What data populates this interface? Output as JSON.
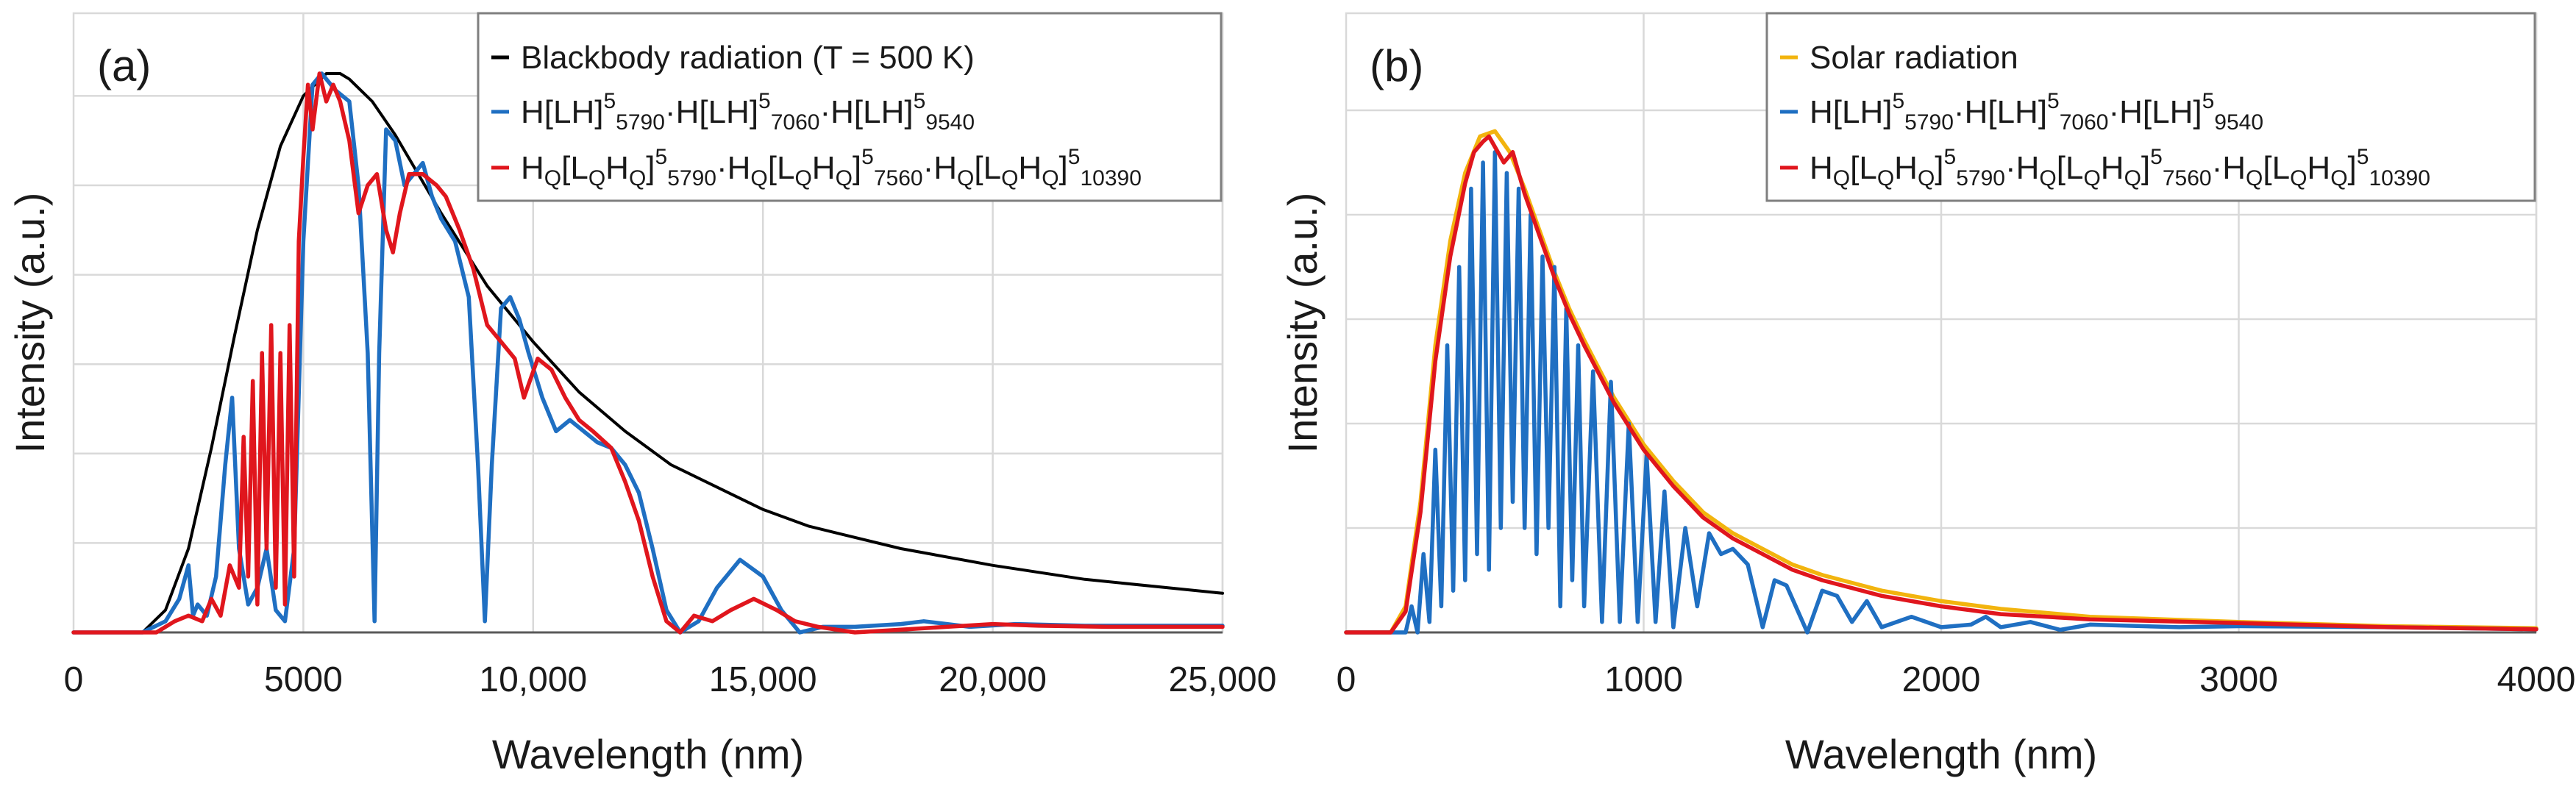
{
  "chart_data": [
    {
      "type": "line",
      "panel_label": "(a)",
      "xlabel": "Wavelength (nm)",
      "ylabel": "Intensity (a.u.)",
      "xlim": [
        0,
        25000
      ],
      "ylim": [
        0,
        1.0
      ],
      "x_ticks": [
        0,
        5000,
        10000,
        15000,
        20000,
        25000
      ],
      "x_tick_labels": [
        "0",
        "5000",
        "10,000",
        "15,000",
        "20,000",
        "25,000"
      ],
      "y_gridlines": [
        0.16,
        0.32,
        0.48,
        0.64,
        0.8,
        0.96
      ],
      "legend_position": "top-right",
      "series": [
        {
          "name": "Blackbody radiation (T = 500 K)",
          "color": "#000000",
          "legend": [
            {
              "t": "Blackbody radiation (T = 500 K)"
            }
          ],
          "x": [
            1500,
            2000,
            2500,
            3000,
            3500,
            4000,
            4500,
            5000,
            5500,
            5800,
            6000,
            6500,
            7000,
            7500,
            8000,
            9000,
            10000,
            11000,
            12000,
            13000,
            14000,
            15000,
            16000,
            18000,
            20000,
            22000,
            25000
          ],
          "y": [
            0.0,
            0.04,
            0.15,
            0.33,
            0.53,
            0.72,
            0.87,
            0.96,
            1.0,
            1.0,
            0.99,
            0.95,
            0.89,
            0.82,
            0.75,
            0.62,
            0.52,
            0.43,
            0.36,
            0.3,
            0.26,
            0.22,
            0.19,
            0.15,
            0.12,
            0.095,
            0.07
          ]
        },
        {
          "name": "H[LH]55790·H[LH]57060·H[LH]59540",
          "color": "#1f6fc2",
          "legend": [
            {
              "t": "H[LH]"
            },
            {
              "t": "5",
              "s": "sup"
            },
            {
              "t": "5790",
              "s": "sub"
            },
            {
              "t": "·H[LH]"
            },
            {
              "t": "5",
              "s": "sup"
            },
            {
              "t": "7060",
              "s": "sub"
            },
            {
              "t": "·H[LH]"
            },
            {
              "t": "5",
              "s": "sup"
            },
            {
              "t": "9540",
              "s": "sub"
            }
          ],
          "x": [
            0,
            1500,
            2000,
            2300,
            2500,
            2600,
            2700,
            2900,
            3100,
            3300,
            3450,
            3600,
            3800,
            4000,
            4200,
            4400,
            4600,
            4800,
            5000,
            5200,
            5400,
            5700,
            6000,
            6200,
            6400,
            6550,
            6650,
            6800,
            7000,
            7200,
            7400,
            7600,
            7800,
            8000,
            8300,
            8600,
            8800,
            8950,
            9100,
            9300,
            9500,
            9700,
            9900,
            10200,
            10500,
            10800,
            11100,
            11400,
            11700,
            12000,
            12300,
            12600,
            12900,
            13200,
            13600,
            14000,
            14500,
            15000,
            15400,
            15800,
            16300,
            17000,
            18000,
            18500,
            19500,
            20500,
            22000,
            23500,
            25000
          ],
          "y": [
            0.0,
            0.0,
            0.02,
            0.06,
            0.12,
            0.03,
            0.05,
            0.03,
            0.1,
            0.3,
            0.42,
            0.15,
            0.05,
            0.08,
            0.15,
            0.04,
            0.02,
            0.15,
            0.7,
            0.98,
            1.0,
            0.97,
            0.95,
            0.8,
            0.5,
            0.02,
            0.5,
            0.9,
            0.88,
            0.8,
            0.82,
            0.84,
            0.78,
            0.74,
            0.7,
            0.6,
            0.3,
            0.02,
            0.3,
            0.58,
            0.6,
            0.56,
            0.5,
            0.42,
            0.36,
            0.38,
            0.36,
            0.34,
            0.33,
            0.3,
            0.25,
            0.15,
            0.04,
            0.0,
            0.02,
            0.08,
            0.13,
            0.1,
            0.04,
            0.0,
            0.01,
            0.01,
            0.015,
            0.02,
            0.01,
            0.015,
            0.012,
            0.012,
            0.012
          ]
        },
        {
          "name": "HQ[LQHQ]55790·HQ[LQHQ]57560·HQ[LQHQ]510390",
          "color": "#e0161d",
          "legend": [
            {
              "t": "H"
            },
            {
              "t": "Q",
              "s": "sub"
            },
            {
              "t": "[L"
            },
            {
              "t": "Q",
              "s": "sub"
            },
            {
              "t": "H"
            },
            {
              "t": "Q",
              "s": "sub"
            },
            {
              "t": "]"
            },
            {
              "t": "5",
              "s": "sup"
            },
            {
              "t": "5790",
              "s": "sub"
            },
            {
              "t": "·H"
            },
            {
              "t": "Q",
              "s": "sub"
            },
            {
              "t": "[L"
            },
            {
              "t": "Q",
              "s": "sub"
            },
            {
              "t": "H"
            },
            {
              "t": "Q",
              "s": "sub"
            },
            {
              "t": "]"
            },
            {
              "t": "5",
              "s": "sup"
            },
            {
              "t": "7560",
              "s": "sub"
            },
            {
              "t": "·H"
            },
            {
              "t": "Q",
              "s": "sub"
            },
            {
              "t": "[L"
            },
            {
              "t": "Q",
              "s": "sub"
            },
            {
              "t": "H"
            },
            {
              "t": "Q",
              "s": "sub"
            },
            {
              "t": "]"
            },
            {
              "t": "5",
              "s": "sup"
            },
            {
              "t": "10390",
              "s": "sub"
            }
          ],
          "x": [
            0,
            1800,
            2200,
            2500,
            2800,
            3000,
            3200,
            3400,
            3600,
            3700,
            3800,
            3900,
            4000,
            4100,
            4200,
            4300,
            4400,
            4500,
            4600,
            4700,
            4800,
            4900,
            5000,
            5100,
            5200,
            5350,
            5500,
            5650,
            5800,
            6000,
            6200,
            6400,
            6600,
            6800,
            6950,
            7100,
            7300,
            7600,
            7900,
            8100,
            8400,
            8700,
            9000,
            9300,
            9600,
            9800,
            10100,
            10400,
            10700,
            11000,
            11300,
            11700,
            12000,
            12300,
            12600,
            12900,
            13200,
            13500,
            13900,
            14300,
            14800,
            15300,
            15700,
            16200,
            17000,
            18000,
            19000,
            20000,
            21000,
            22500,
            25000
          ],
          "y": [
            0.0,
            0.0,
            0.02,
            0.03,
            0.02,
            0.06,
            0.03,
            0.12,
            0.08,
            0.35,
            0.1,
            0.45,
            0.05,
            0.5,
            0.15,
            0.55,
            0.08,
            0.5,
            0.05,
            0.55,
            0.1,
            0.7,
            0.85,
            0.98,
            0.9,
            1.0,
            0.95,
            0.98,
            0.95,
            0.88,
            0.75,
            0.8,
            0.82,
            0.72,
            0.68,
            0.75,
            0.82,
            0.82,
            0.8,
            0.78,
            0.72,
            0.65,
            0.55,
            0.52,
            0.49,
            0.42,
            0.49,
            0.47,
            0.42,
            0.38,
            0.36,
            0.33,
            0.27,
            0.2,
            0.1,
            0.02,
            0.0,
            0.03,
            0.02,
            0.04,
            0.06,
            0.04,
            0.02,
            0.01,
            0.0,
            0.005,
            0.01,
            0.015,
            0.012,
            0.01,
            0.01
          ]
        }
      ]
    },
    {
      "type": "line",
      "panel_label": "(b)",
      "xlabel": "Wavelength (nm)",
      "ylabel": "Intensity (a.u.)",
      "xlim": [
        0,
        4000
      ],
      "ylim": [
        0,
        1.0
      ],
      "x_ticks": [
        0,
        1000,
        2000,
        3000,
        4000
      ],
      "x_tick_labels": [
        "0",
        "1000",
        "2000",
        "3000",
        "4000"
      ],
      "y_gridlines": [
        0.2,
        0.4,
        0.6,
        0.8,
        1.0
      ],
      "legend_position": "top-right",
      "series": [
        {
          "name": "Solar radiation",
          "color": "#f2b40e",
          "legend": [
            {
              "t": "Solar radiation"
            }
          ],
          "x": [
            0,
            150,
            200,
            250,
            300,
            350,
            400,
            450,
            500,
            550,
            600,
            650,
            700,
            750,
            800,
            900,
            1000,
            1100,
            1200,
            1300,
            1400,
            1500,
            1600,
            1800,
            2000,
            2200,
            2500,
            3000,
            3500,
            4000
          ],
          "y": [
            0.0,
            0.0,
            0.05,
            0.25,
            0.55,
            0.75,
            0.88,
            0.95,
            0.96,
            0.92,
            0.85,
            0.77,
            0.69,
            0.62,
            0.56,
            0.45,
            0.36,
            0.29,
            0.23,
            0.19,
            0.16,
            0.13,
            0.11,
            0.08,
            0.06,
            0.045,
            0.03,
            0.02,
            0.012,
            0.008
          ]
        },
        {
          "name": "H[LH]55790·H[LH]57060·H[LH]59540",
          "color": "#1f6fc2",
          "legend": [
            {
              "t": "H[LH]"
            },
            {
              "t": "5",
              "s": "sup"
            },
            {
              "t": "5790",
              "s": "sub"
            },
            {
              "t": "·H[LH]"
            },
            {
              "t": "5",
              "s": "sup"
            },
            {
              "t": "7060",
              "s": "sub"
            },
            {
              "t": "·H[LH]"
            },
            {
              "t": "5",
              "s": "sup"
            },
            {
              "t": "9540",
              "s": "sub"
            }
          ],
          "x": [
            0,
            150,
            200,
            220,
            240,
            260,
            280,
            300,
            320,
            340,
            360,
            380,
            400,
            420,
            440,
            460,
            480,
            500,
            520,
            540,
            560,
            580,
            600,
            620,
            640,
            660,
            680,
            700,
            720,
            740,
            760,
            780,
            800,
            830,
            860,
            890,
            920,
            950,
            980,
            1010,
            1040,
            1070,
            1100,
            1140,
            1180,
            1220,
            1260,
            1300,
            1350,
            1400,
            1440,
            1480,
            1550,
            1600,
            1650,
            1700,
            1750,
            1800,
            1900,
            2000,
            2100,
            2150,
            2200,
            2300,
            2400,
            2500,
            2800,
            3000,
            3500,
            4000
          ],
          "y": [
            0.0,
            0.0,
            0.0,
            0.05,
            0.0,
            0.15,
            0.02,
            0.35,
            0.05,
            0.55,
            0.08,
            0.7,
            0.1,
            0.85,
            0.15,
            0.9,
            0.12,
            0.92,
            0.2,
            0.88,
            0.25,
            0.85,
            0.2,
            0.8,
            0.15,
            0.72,
            0.2,
            0.7,
            0.05,
            0.62,
            0.1,
            0.55,
            0.05,
            0.5,
            0.02,
            0.48,
            0.02,
            0.4,
            0.02,
            0.34,
            0.02,
            0.27,
            0.01,
            0.2,
            0.05,
            0.19,
            0.15,
            0.16,
            0.13,
            0.01,
            0.1,
            0.09,
            0.0,
            0.08,
            0.07,
            0.02,
            0.06,
            0.01,
            0.03,
            0.01,
            0.015,
            0.03,
            0.01,
            0.02,
            0.005,
            0.015,
            0.01,
            0.012,
            0.01,
            0.006
          ]
        },
        {
          "name": "HQ[LQHQ]55790·HQ[LQHQ]57560·HQ[LQHQ]510390",
          "color": "#e0161d",
          "legend": [
            {
              "t": "H"
            },
            {
              "t": "Q",
              "s": "sub"
            },
            {
              "t": "[L"
            },
            {
              "t": "Q",
              "s": "sub"
            },
            {
              "t": "H"
            },
            {
              "t": "Q",
              "s": "sub"
            },
            {
              "t": "]"
            },
            {
              "t": "5",
              "s": "sup"
            },
            {
              "t": "5790",
              "s": "sub"
            },
            {
              "t": "·H"
            },
            {
              "t": "Q",
              "s": "sub"
            },
            {
              "t": "[L"
            },
            {
              "t": "Q",
              "s": "sub"
            },
            {
              "t": "H"
            },
            {
              "t": "Q",
              "s": "sub"
            },
            {
              "t": "]"
            },
            {
              "t": "5",
              "s": "sup"
            },
            {
              "t": "7560",
              "s": "sub"
            },
            {
              "t": "·H"
            },
            {
              "t": "Q",
              "s": "sub"
            },
            {
              "t": "[L"
            },
            {
              "t": "Q",
              "s": "sub"
            },
            {
              "t": "H"
            },
            {
              "t": "Q",
              "s": "sub"
            },
            {
              "t": "]"
            },
            {
              "t": "5",
              "s": "sup"
            },
            {
              "t": "10390",
              "s": "sub"
            }
          ],
          "x": [
            0,
            150,
            200,
            250,
            300,
            350,
            400,
            430,
            460,
            480,
            500,
            530,
            560,
            600,
            650,
            700,
            750,
            800,
            900,
            1000,
            1100,
            1200,
            1300,
            1400,
            1500,
            1600,
            1800,
            2000,
            2200,
            2500,
            3000,
            3500,
            4000
          ],
          "y": [
            0.0,
            0.0,
            0.04,
            0.23,
            0.52,
            0.72,
            0.86,
            0.92,
            0.94,
            0.95,
            0.93,
            0.9,
            0.92,
            0.84,
            0.76,
            0.68,
            0.61,
            0.55,
            0.44,
            0.35,
            0.28,
            0.22,
            0.18,
            0.15,
            0.12,
            0.1,
            0.07,
            0.05,
            0.035,
            0.025,
            0.018,
            0.01,
            0.006
          ]
        }
      ]
    }
  ]
}
